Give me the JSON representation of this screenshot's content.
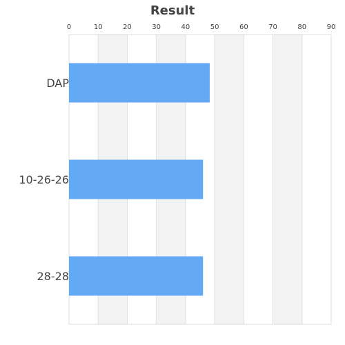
{
  "chart_data": {
    "type": "bar",
    "orientation": "horizontal",
    "title": "Result",
    "xlabel": "",
    "ylabel": "",
    "categories": [
      "DAP",
      "10-26-26",
      "28-28"
    ],
    "values": [
      48.3,
      46.0,
      46.0
    ],
    "xlim": [
      0,
      90
    ],
    "x_ticks": [
      0,
      10,
      20,
      30,
      40,
      50,
      60,
      70,
      80,
      90
    ],
    "axis_position": "top",
    "grid": true,
    "alternating_bands": true,
    "colors": {
      "bar": "#63a9f4",
      "band": "#f3f3f3",
      "gridline": "#dddddd",
      "text": "#444444"
    }
  }
}
